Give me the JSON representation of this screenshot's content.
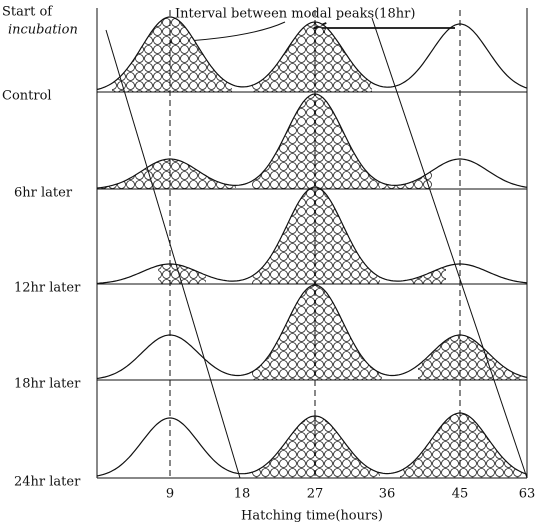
{
  "header": {
    "start_label": [
      "Start of",
      "incubation"
    ],
    "annotation": "Interval between modal peaks(18hr)"
  },
  "rows": [
    "Control",
    "6hr later",
    "12hr later",
    "18hr later",
    "24hr later"
  ],
  "x_axis": {
    "ticks": [
      9,
      18,
      27,
      36,
      45,
      63
    ],
    "title": "Hatching time(hours)"
  }
}
